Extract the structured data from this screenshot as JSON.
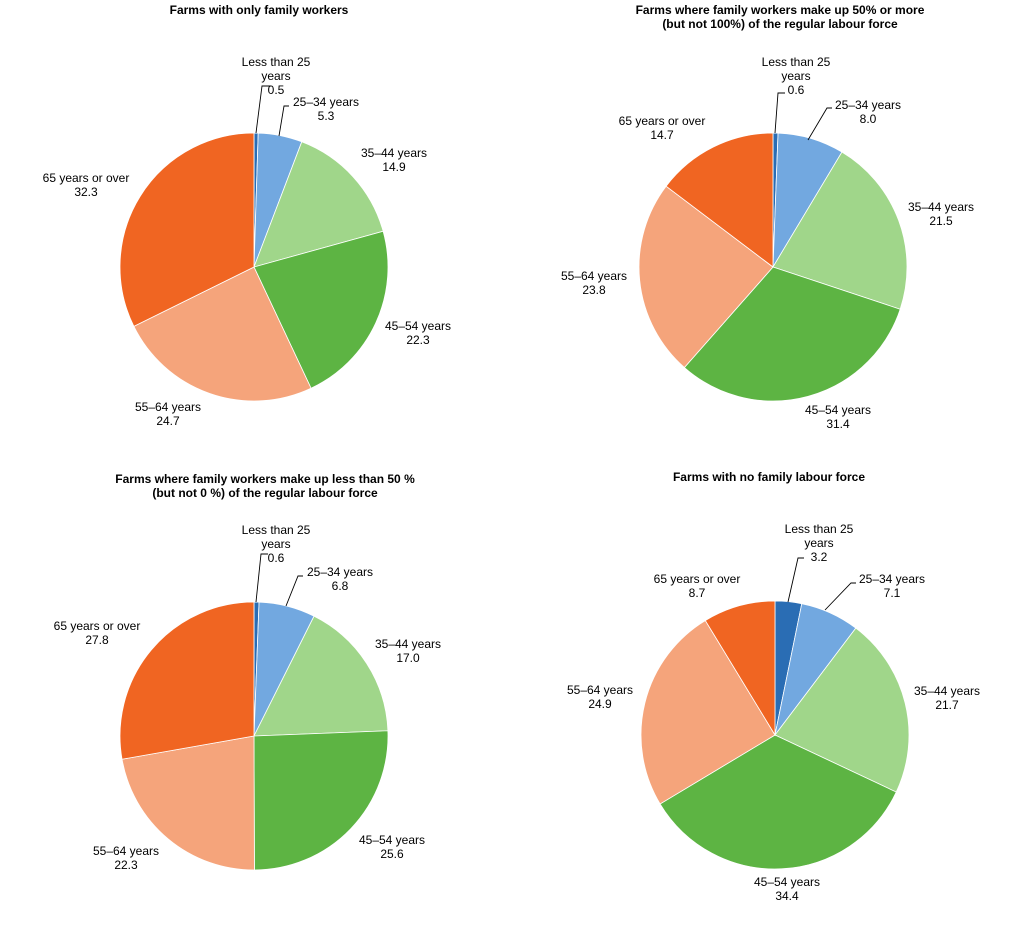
{
  "palette": {
    "Less than 25 years": "#2a6db4",
    "25–34 years": "#72a8e0",
    "35–44 years": "#a0d68a",
    "45–54 years": "#5db443",
    "55–64 years": "#f5a47b",
    "65 years or over": "#f06522"
  },
  "chart_data": [
    {
      "type": "pie",
      "title": [
        "Farms with only family workers"
      ],
      "categories": [
        "Less than 25 years",
        "25–34 years",
        "35–44 years",
        "45–54 years",
        "55–64 years",
        "65 years or over"
      ],
      "label_lines": [
        [
          "Less than 25",
          "years"
        ],
        [
          "25–34 years"
        ],
        [
          "35–44 years"
        ],
        [
          "45–54 years"
        ],
        [
          "55–64 years"
        ],
        [
          "65 years or over"
        ]
      ],
      "value_labels": [
        "0.5",
        "5.3",
        "14.9",
        "22.3",
        "24.7",
        "32.3"
      ],
      "values": [
        0.5,
        5.3,
        14.9,
        22.3,
        24.7,
        32.3
      ]
    },
    {
      "type": "pie",
      "title": [
        "Farms where family workers make up 50% or more",
        "(but not 100%) of the regular labour force"
      ],
      "categories": [
        "Less than 25 years",
        "25–34 years",
        "35–44 years",
        "45–54 years",
        "55–64 years",
        "65 years or over"
      ],
      "label_lines": [
        [
          "Less than 25",
          "years"
        ],
        [
          "25–34 years"
        ],
        [
          "35–44 years"
        ],
        [
          "45–54 years"
        ],
        [
          "55–64 years"
        ],
        [
          "65 years or over"
        ]
      ],
      "value_labels": [
        "0.6",
        "8.0",
        "21.5",
        "31.4",
        "23.8",
        "14.7"
      ],
      "values": [
        0.6,
        8.0,
        21.5,
        31.4,
        23.8,
        14.7
      ]
    },
    {
      "type": "pie",
      "title": [
        "Farms where family workers make up less than 50 %",
        "(but not 0 %) of the regular labour force"
      ],
      "categories": [
        "Less than 25 years",
        "25–34 years",
        "35–44 years",
        "45–54 years",
        "55–64 years",
        "65 years or over"
      ],
      "label_lines": [
        [
          "Less than 25",
          "years"
        ],
        [
          "25–34 years"
        ],
        [
          "35–44 years"
        ],
        [
          "45–54 years"
        ],
        [
          "55–64 years"
        ],
        [
          "65 years or over"
        ]
      ],
      "value_labels": [
        "0.6",
        "6.8",
        "17.0",
        "25.6",
        "22.3",
        "27.8"
      ],
      "values": [
        0.6,
        6.8,
        17.0,
        25.6,
        22.3,
        27.8
      ]
    },
    {
      "type": "pie",
      "title": [
        "Farms with no family labour force"
      ],
      "categories": [
        "Less than 25 years",
        "25–34 years",
        "35–44 years",
        "45–54 years",
        "55–64 years",
        "65 years or over"
      ],
      "label_lines": [
        [
          "Less than 25",
          "years"
        ],
        [
          "25–34 years"
        ],
        [
          "35–44 years"
        ],
        [
          "45–54 years"
        ],
        [
          "55–64 years"
        ],
        [
          "65 years or over"
        ]
      ],
      "value_labels": [
        "3.2",
        "7.1",
        "21.7",
        "34.4",
        "24.9",
        "8.7"
      ],
      "values": [
        3.2,
        7.1,
        21.7,
        34.4,
        24.9,
        8.7
      ]
    }
  ]
}
